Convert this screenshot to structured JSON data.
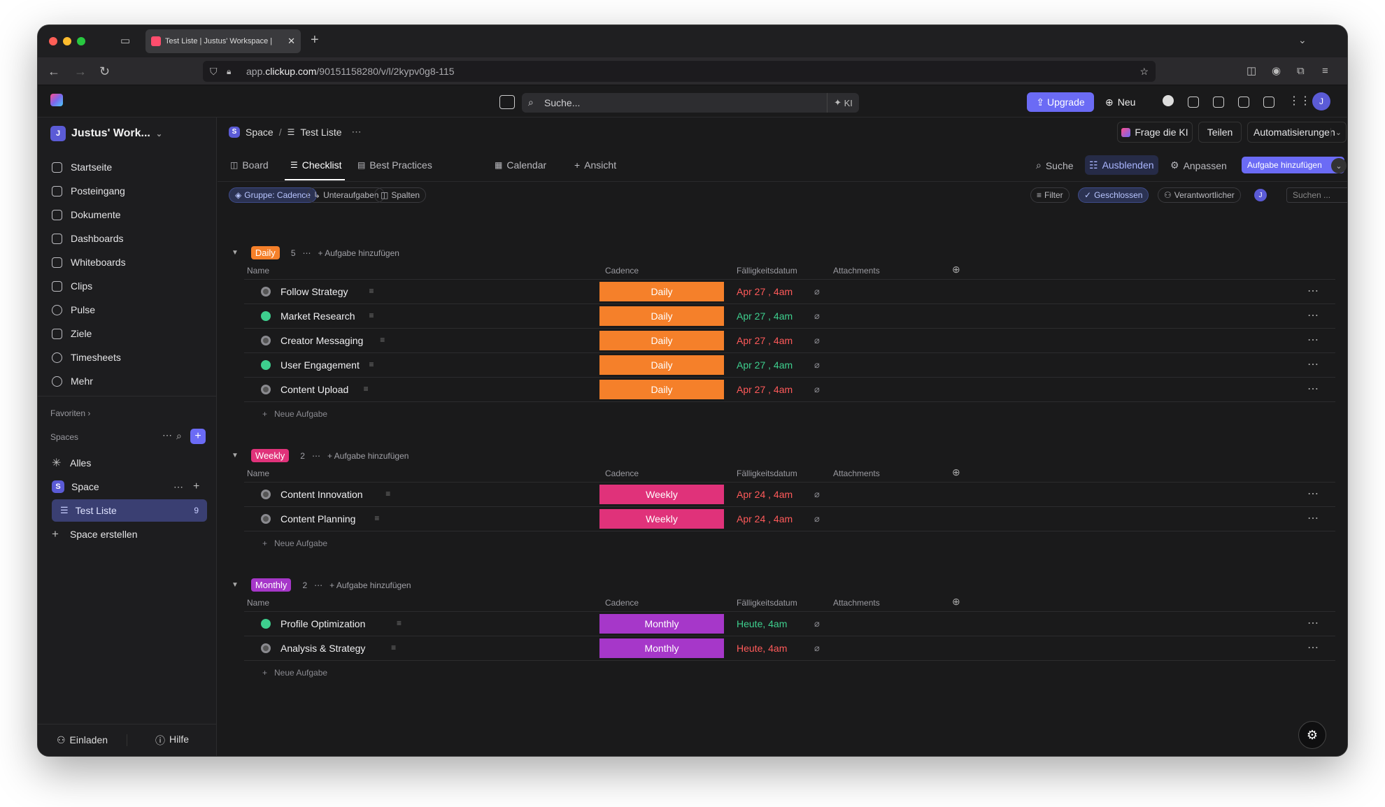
{
  "browser": {
    "tab_title": "Test Liste | Justus' Workspace |",
    "url_prefix": "app.",
    "url_domain": "clickup.com",
    "url_path": "/90151158280/v/l/2kypv0g8-115"
  },
  "header": {
    "search_placeholder": "Suche...",
    "ki": "KI",
    "upgrade": "Upgrade",
    "new": "Neu",
    "avatar": "J"
  },
  "sidebar": {
    "workspace_badge": "J",
    "workspace_name": "Justus' Work...",
    "nav": [
      "Startseite",
      "Posteingang",
      "Dokumente",
      "Dashboards",
      "Whiteboards",
      "Clips",
      "Pulse",
      "Ziele",
      "Timesheets",
      "Mehr"
    ],
    "favorites": "Favoriten",
    "spaces": "Spaces",
    "all": "Alles",
    "space_badge": "S",
    "space_name": "Space",
    "list_name": "Test Liste",
    "list_count": "9",
    "create_space": "Space erstellen",
    "invite": "Einladen",
    "help": "Hilfe"
  },
  "main": {
    "breadcrumb": {
      "space": "Space",
      "sep": "/",
      "list": "Test Liste"
    },
    "top_buttons": {
      "ask_ai": "Frage die KI",
      "share": "Teilen",
      "automations": "Automatisierungen"
    },
    "views": [
      "Board",
      "Checklist",
      "Best Practices",
      "Calendar",
      "Ansicht"
    ],
    "view_actions": {
      "search": "Suche",
      "hide": "Ausblenden",
      "customize": "Anpassen",
      "add_task": "Aufgabe hinzufügen"
    },
    "chips": {
      "group": "Gruppe: Cadence",
      "subtasks": "Unteraufgaben",
      "columns": "Spalten",
      "filter": "Filter",
      "closed": "Geschlossen",
      "assignee": "Verantwortlicher",
      "search_placeholder": "Suchen ..."
    },
    "columns": {
      "name": "Name",
      "cadence": "Cadence",
      "due": "Fälligkeitsdatum",
      "attachments": "Attachments"
    },
    "add_task_label": "Aufgabe hinzufügen",
    "new_task": "Neue Aufgabe",
    "groups": [
      {
        "label": "Daily",
        "count": "5",
        "color": "#f5802a",
        "tasks": [
          {
            "name": "Follow Strategy",
            "cadence": "Daily",
            "due": "Apr 27 , 4am",
            "status": "open",
            "due_color": "#ff5a5a"
          },
          {
            "name": "Market Research",
            "cadence": "Daily",
            "due": "Apr 27 , 4am",
            "status": "done",
            "due_color": "#3ecf8e"
          },
          {
            "name": "Creator Messaging",
            "cadence": "Daily",
            "due": "Apr 27 , 4am",
            "status": "open",
            "due_color": "#ff5a5a"
          },
          {
            "name": "User Engagement",
            "cadence": "Daily",
            "due": "Apr 27 , 4am",
            "status": "done",
            "due_color": "#3ecf8e"
          },
          {
            "name": "Content Upload",
            "cadence": "Daily",
            "due": "Apr 27 , 4am",
            "status": "open",
            "due_color": "#ff5a5a"
          }
        ]
      },
      {
        "label": "Weekly",
        "count": "2",
        "color": "#e0327a",
        "tasks": [
          {
            "name": "Content Innovation",
            "cadence": "Weekly",
            "due": "Apr 24 , 4am",
            "status": "open",
            "due_color": "#ff5a5a"
          },
          {
            "name": "Content Planning",
            "cadence": "Weekly",
            "due": "Apr 24 , 4am",
            "status": "open",
            "due_color": "#ff5a5a"
          }
        ]
      },
      {
        "label": "Monthly",
        "count": "2",
        "color": "#a637c9",
        "tasks": [
          {
            "name": "Profile Optimization",
            "cadence": "Monthly",
            "due": "Heute, 4am",
            "status": "done",
            "due_color": "#3ecf8e"
          },
          {
            "name": "Analysis & Strategy",
            "cadence": "Monthly",
            "due": "Heute, 4am",
            "status": "open",
            "due_color": "#ff5a5a"
          }
        ]
      }
    ]
  }
}
